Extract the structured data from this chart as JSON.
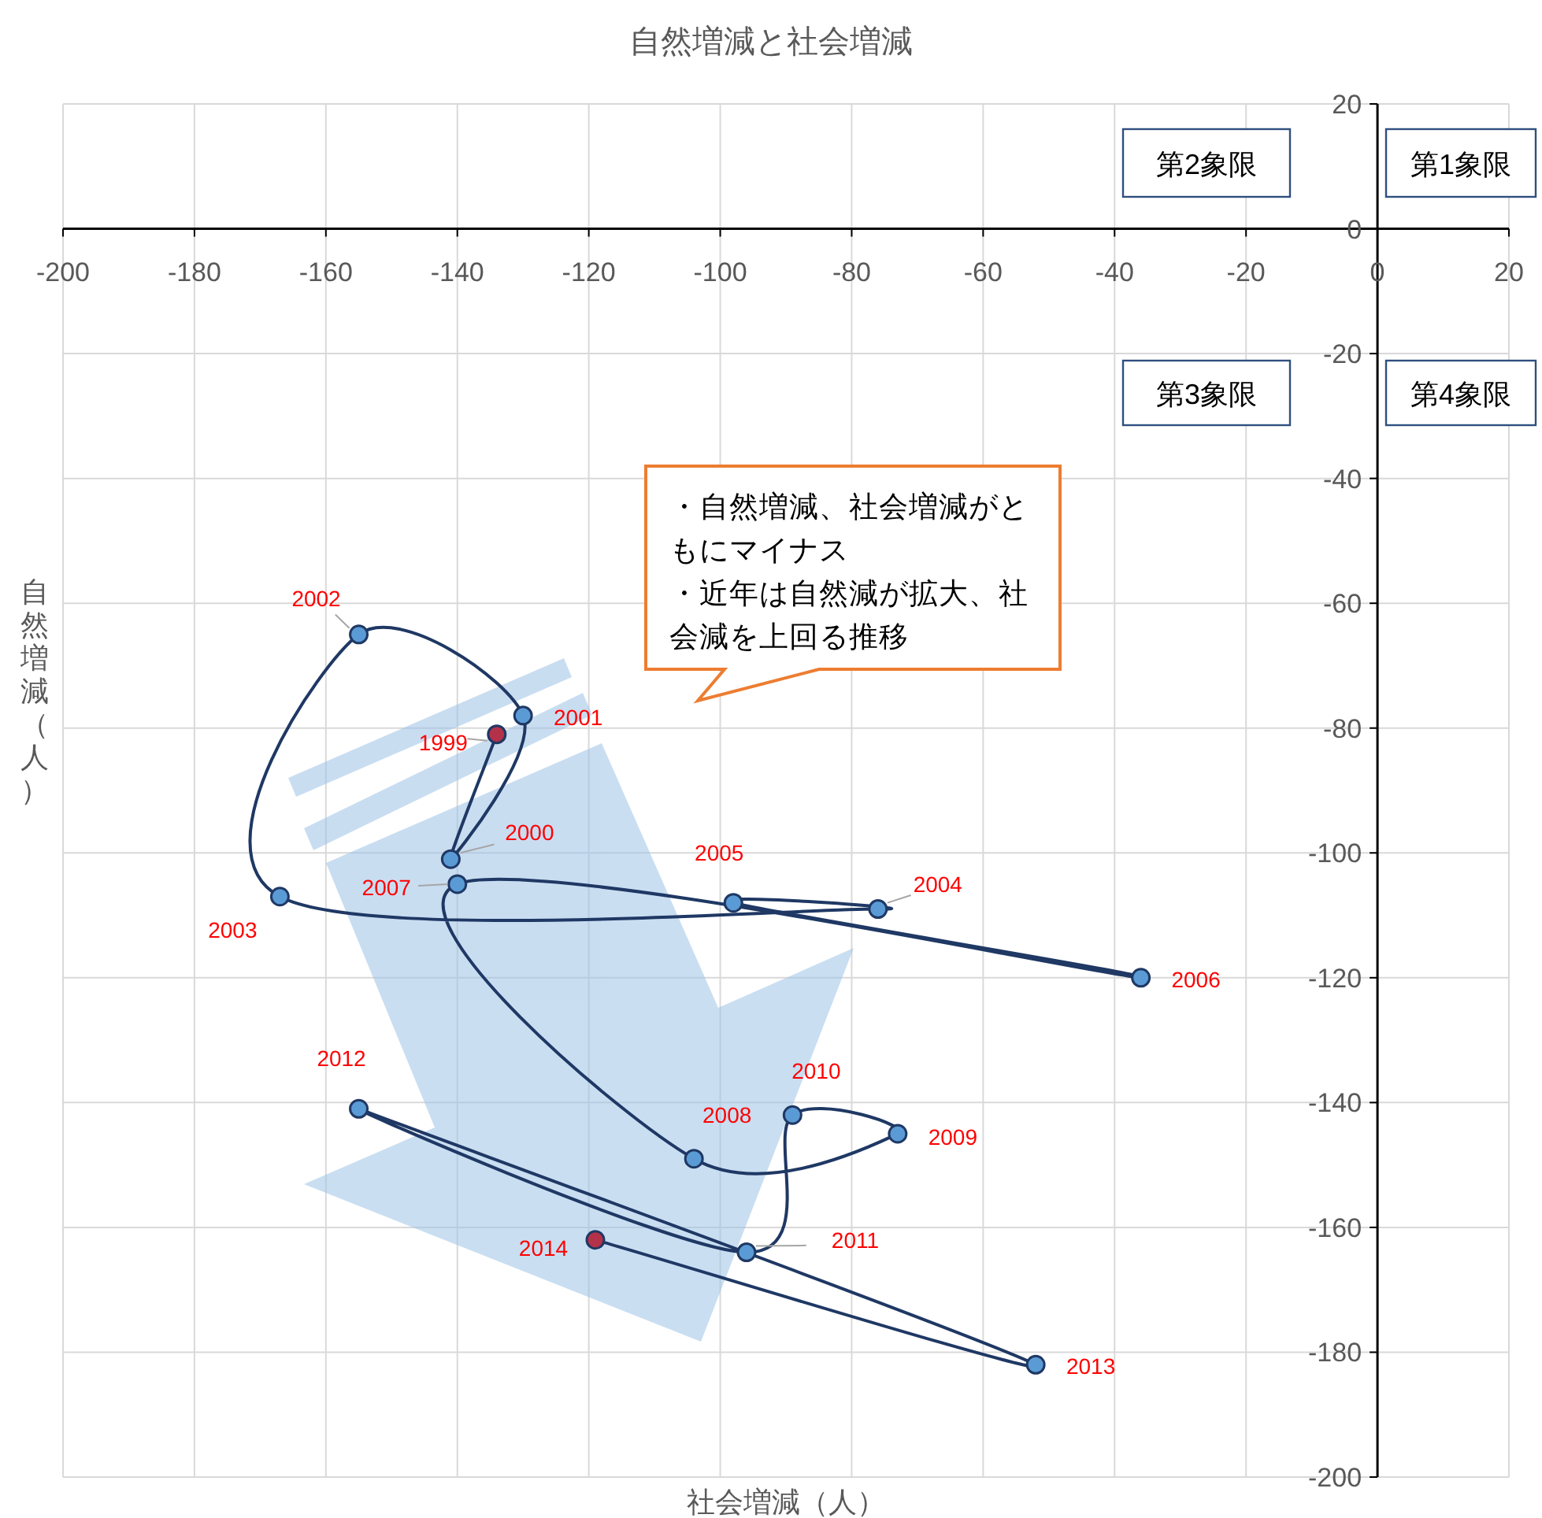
{
  "chart_data": {
    "type": "line",
    "title": "自然増減と社会増減",
    "xlabel": "社会増減（人）",
    "ylabel": "自然増減（人）",
    "marker": "circle",
    "grid": true,
    "line_style": "solid",
    "xlim": [
      -200,
      20
    ],
    "ylim": [
      -200,
      20
    ],
    "xticks": [
      -200,
      -180,
      -160,
      -140,
      -120,
      -100,
      -80,
      -60,
      -40,
      -20,
      0,
      20
    ],
    "yticks": [
      20,
      0,
      -20,
      -40,
      -60,
      -80,
      -100,
      -120,
      -140,
      -160,
      -180,
      -200
    ],
    "series": [
      {
        "color": "#1f3864",
        "x": [
          -134,
          -141,
          -130,
          -155,
          -167,
          -76,
          -98,
          -36,
          -140,
          -104,
          -73,
          -89,
          -96,
          -155,
          -52,
          -119
        ],
        "values": [
          -81,
          -101,
          -78,
          -65,
          -107,
          -109,
          -108,
          -120,
          -105,
          -149,
          -145,
          -142,
          -164,
          -141,
          -182,
          -162
        ],
        "colors": [
          "#b4314a",
          "#5b9bd5",
          "#5b9bd5",
          "#5b9bd5",
          "#5b9bd5",
          "#5b9bd5",
          "#5b9bd5",
          "#5b9bd5",
          "#5b9bd5",
          "#5b9bd5",
          "#5b9bd5",
          "#5b9bd5",
          "#5b9bd5",
          "#5b9bd5",
          "#5b9bd5",
          "#b4314a"
        ]
      }
    ],
    "annotations": [
      {
        "text": "1999",
        "x": -134,
        "y": -81
      },
      {
        "text": "2000",
        "x": -141,
        "y": -101
      },
      {
        "text": "2001",
        "x": -130,
        "y": -78
      },
      {
        "text": "2002",
        "x": -155,
        "y": -65
      },
      {
        "text": "2003",
        "x": -167,
        "y": -107
      },
      {
        "text": "2004",
        "x": -76,
        "y": -109
      },
      {
        "text": "2005",
        "x": -98,
        "y": -108
      },
      {
        "text": "2006",
        "x": -36,
        "y": -120
      },
      {
        "text": "2007",
        "x": -140,
        "y": -105
      },
      {
        "text": "2008",
        "x": -104,
        "y": -149
      },
      {
        "text": "2009",
        "x": -73,
        "y": -145
      },
      {
        "text": "2010",
        "x": -89,
        "y": -142
      },
      {
        "text": "2011",
        "x": -96,
        "y": -164
      },
      {
        "text": "2012",
        "x": -155,
        "y": -141
      },
      {
        "text": "2013",
        "x": -52,
        "y": -182
      },
      {
        "text": "2014",
        "x": -119,
        "y": -162
      },
      "第2象限",
      "第1象限",
      "第3象限",
      "第4象限",
      "・自然増減、社会増減がともにマイナス",
      "・近年は自然減が拡大、社会減を上回る推移"
    ]
  }
}
